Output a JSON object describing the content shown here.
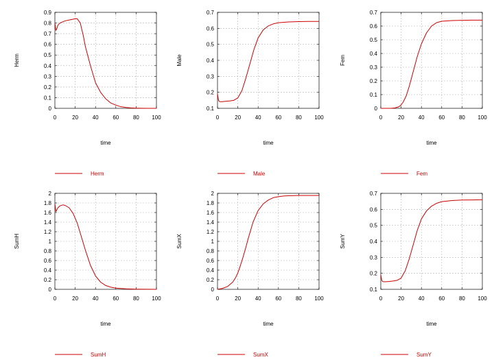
{
  "chart_data": [
    {
      "type": "line",
      "xlabel": "time",
      "ylabel": "Herm",
      "xlim": [
        0,
        100
      ],
      "ylim": [
        0,
        0.9
      ],
      "xticks": [
        "0",
        "20",
        "40",
        "60",
        "80",
        "100"
      ],
      "yticks": [
        "0",
        "0.1",
        "0.2",
        "0.3",
        "0.4",
        "0.5",
        "0.6",
        "0.7",
        "0.8",
        "0.9"
      ],
      "grid": true,
      "legend_position": "bottom",
      "series": [
        {
          "name": "Herm",
          "color": "#cc0000",
          "x": [
            0,
            1,
            2,
            3,
            5,
            10,
            15,
            20,
            22,
            25,
            28,
            30,
            35,
            40,
            45,
            50,
            55,
            60,
            65,
            70,
            75,
            80,
            90,
            100
          ],
          "y": [
            0.8,
            0.73,
            0.75,
            0.78,
            0.8,
            0.82,
            0.83,
            0.84,
            0.84,
            0.8,
            0.68,
            0.58,
            0.4,
            0.24,
            0.15,
            0.09,
            0.05,
            0.03,
            0.015,
            0.008,
            0.004,
            0.002,
            0.0,
            0.0
          ]
        }
      ]
    },
    {
      "type": "line",
      "xlabel": "time",
      "ylabel": "Male",
      "xlim": [
        0,
        100
      ],
      "ylim": [
        0.1,
        0.7
      ],
      "xticks": [
        "0",
        "20",
        "40",
        "60",
        "80",
        "100"
      ],
      "yticks": [
        "0.1",
        "0.2",
        "0.3",
        "0.4",
        "0.5",
        "0.6",
        "0.7"
      ],
      "grid": true,
      "legend_position": "bottom",
      "series": [
        {
          "name": "Male",
          "color": "#cc0000",
          "x": [
            0,
            1,
            2,
            4,
            8,
            12,
            16,
            20,
            24,
            28,
            32,
            36,
            40,
            45,
            50,
            55,
            60,
            70,
            80,
            90,
            100
          ],
          "y": [
            0.19,
            0.15,
            0.142,
            0.141,
            0.144,
            0.146,
            0.15,
            0.165,
            0.21,
            0.29,
            0.38,
            0.47,
            0.54,
            0.59,
            0.615,
            0.628,
            0.635,
            0.64,
            0.642,
            0.643,
            0.643
          ]
        }
      ]
    },
    {
      "type": "line",
      "xlabel": "time",
      "ylabel": "Fem",
      "xlim": [
        0,
        100
      ],
      "ylim": [
        0,
        0.7
      ],
      "xticks": [
        "0",
        "20",
        "40",
        "60",
        "80",
        "100"
      ],
      "yticks": [
        "0",
        "0.1",
        "0.2",
        "0.3",
        "0.4",
        "0.5",
        "0.6",
        "0.7"
      ],
      "grid": true,
      "legend_position": "bottom",
      "series": [
        {
          "name": "Fem",
          "color": "#cc0000",
          "x": [
            0,
            10,
            14,
            18,
            20,
            22,
            25,
            28,
            32,
            36,
            40,
            45,
            50,
            55,
            60,
            70,
            80,
            90,
            100
          ],
          "y": [
            0.0,
            0.0,
            0.003,
            0.012,
            0.025,
            0.045,
            0.09,
            0.16,
            0.27,
            0.38,
            0.47,
            0.55,
            0.6,
            0.625,
            0.635,
            0.64,
            0.642,
            0.643,
            0.643
          ]
        }
      ]
    },
    {
      "type": "line",
      "xlabel": "time",
      "ylabel": "SumH",
      "xlim": [
        0,
        100
      ],
      "ylim": [
        0,
        2
      ],
      "xticks": [
        "0",
        "20",
        "40",
        "60",
        "80",
        "100"
      ],
      "yticks": [
        "0",
        "0.2",
        "0.4",
        "0.6",
        "0.8",
        "1",
        "1.2",
        "1.4",
        "1.6",
        "1.8",
        "2"
      ],
      "grid": true,
      "legend_position": "bottom",
      "series": [
        {
          "name": "SumH",
          "color": "#cc0000",
          "x": [
            0,
            1,
            2,
            3,
            5,
            8,
            10,
            14,
            18,
            22,
            26,
            30,
            35,
            40,
            45,
            50,
            55,
            60,
            70,
            80,
            90,
            100
          ],
          "y": [
            1.78,
            1.62,
            1.66,
            1.7,
            1.74,
            1.76,
            1.75,
            1.7,
            1.58,
            1.38,
            1.1,
            0.82,
            0.5,
            0.28,
            0.15,
            0.08,
            0.045,
            0.025,
            0.01,
            0.004,
            0.001,
            0.0
          ]
        }
      ]
    },
    {
      "type": "line",
      "xlabel": "time",
      "ylabel": "SumX",
      "xlim": [
        0,
        100
      ],
      "ylim": [
        0,
        2
      ],
      "xticks": [
        "0",
        "20",
        "40",
        "60",
        "80",
        "100"
      ],
      "yticks": [
        "0",
        "0.2",
        "0.4",
        "0.6",
        "0.8",
        "1",
        "1.2",
        "1.4",
        "1.6",
        "1.8",
        "2"
      ],
      "grid": true,
      "legend_position": "bottom",
      "series": [
        {
          "name": "SumX",
          "color": "#cc0000",
          "x": [
            0,
            5,
            10,
            15,
            18,
            20,
            22,
            25,
            28,
            30,
            35,
            40,
            45,
            50,
            55,
            60,
            65,
            70,
            80,
            90,
            100
          ],
          "y": [
            0.0,
            0.02,
            0.06,
            0.15,
            0.25,
            0.34,
            0.46,
            0.66,
            0.88,
            1.04,
            1.4,
            1.64,
            1.78,
            1.86,
            1.91,
            1.93,
            1.945,
            1.95,
            1.955,
            1.955,
            1.955
          ]
        }
      ]
    },
    {
      "type": "line",
      "xlabel": "time",
      "ylabel": "SumY",
      "xlim": [
        0,
        100
      ],
      "ylim": [
        0.1,
        0.7
      ],
      "xticks": [
        "0",
        "20",
        "40",
        "60",
        "80",
        "100"
      ],
      "yticks": [
        "0.1",
        "0.2",
        "0.3",
        "0.4",
        "0.5",
        "0.6",
        "0.7"
      ],
      "grid": true,
      "legend_position": "bottom",
      "series": [
        {
          "name": "SumY",
          "color": "#cc0000",
          "x": [
            0,
            1,
            2,
            4,
            8,
            12,
            16,
            20,
            24,
            28,
            32,
            36,
            40,
            45,
            50,
            55,
            60,
            70,
            80,
            90,
            100
          ],
          "y": [
            0.19,
            0.155,
            0.148,
            0.147,
            0.149,
            0.152,
            0.156,
            0.17,
            0.215,
            0.29,
            0.38,
            0.47,
            0.54,
            0.59,
            0.62,
            0.638,
            0.648,
            0.655,
            0.658,
            0.659,
            0.66
          ]
        }
      ]
    }
  ]
}
